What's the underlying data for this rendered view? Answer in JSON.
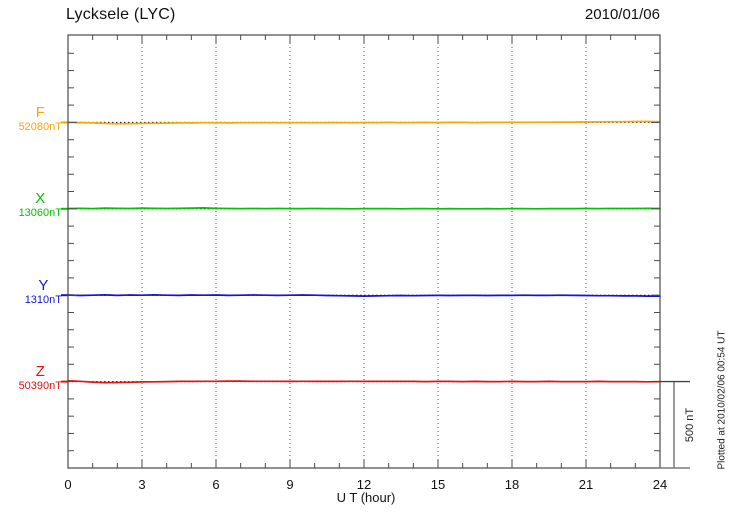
{
  "header": {
    "station_title": "Lycksele (LYC)",
    "date": "2010/01/06"
  },
  "chart_data": {
    "type": "line",
    "title": "Lycksele (LYC)",
    "date": "2010/01/06",
    "xlabel": "U T (hour)",
    "x_range_hours": [
      0,
      24
    ],
    "x_ticks": [
      0,
      3,
      6,
      9,
      12,
      15,
      18,
      21,
      24
    ],
    "x_minor_tick_hours": 1,
    "y_minor_tick_nT": 100,
    "grid": "vertical dotted lines every 3 hours, dotted horizontal baseline per component",
    "legend_position": "left margin, one label per trace baseline",
    "sample_step_hours": 0.5,
    "amplitude_scale": {
      "label": "500 nT",
      "nT": 500
    },
    "plotted_at": "Plotted at 2010/02/06 00:54 UT",
    "series": [
      {
        "name": "F",
        "baseline_value_label": "52080nT",
        "baseline_nT": 52080,
        "color": "#FFA500",
        "offsets_nT": [
          0,
          -1,
          -3,
          -6,
          -8,
          -7,
          -6,
          -5,
          -4,
          -3,
          -3,
          -2,
          -2,
          -3,
          -2,
          -2,
          -1,
          -2,
          -2,
          -1,
          -2,
          -1,
          -1,
          -2,
          -1,
          -1,
          0,
          -1,
          -1,
          0,
          -1,
          0,
          0,
          -1,
          0,
          0,
          1,
          0,
          1,
          1,
          2,
          2,
          3,
          3,
          4,
          4,
          5,
          5,
          4
        ]
      },
      {
        "name": "X",
        "baseline_value_label": "13060nT",
        "baseline_nT": 13060,
        "color": "#00C400",
        "offsets_nT": [
          2,
          3,
          1,
          4,
          3,
          2,
          4,
          3,
          2,
          3,
          4,
          5,
          3,
          2,
          1,
          2,
          1,
          2,
          1,
          1,
          2,
          1,
          1,
          0,
          1,
          1,
          1,
          0,
          1,
          1,
          0,
          1,
          0,
          0,
          1,
          0,
          1,
          1,
          0,
          1,
          1,
          1,
          2,
          1,
          2,
          2,
          2,
          3,
          2
        ]
      },
      {
        "name": "Y",
        "baseline_value_label": "1310nT",
        "baseline_nT": 1310,
        "color": "#1414D6",
        "offsets_nT": [
          1,
          -2,
          0,
          2,
          -1,
          1,
          0,
          2,
          0,
          -1,
          1,
          0,
          1,
          -1,
          0,
          1,
          0,
          -1,
          0,
          1,
          0,
          -2,
          -3,
          -4,
          -5,
          -4,
          -3,
          -2,
          -3,
          -2,
          -1,
          -2,
          -1,
          -1,
          -2,
          -1,
          -1,
          0,
          -1,
          -1,
          0,
          -1,
          -2,
          -3,
          -3,
          -4,
          -4,
          -5,
          -6
        ]
      },
      {
        "name": "Z",
        "baseline_value_label": "50390nT",
        "baseline_nT": 50390,
        "color": "#E21414",
        "offsets_nT": [
          4,
          2,
          -3,
          -6,
          -5,
          -4,
          -2,
          -1,
          0,
          1,
          1,
          2,
          2,
          3,
          3,
          2,
          2,
          2,
          1,
          2,
          1,
          1,
          1,
          2,
          1,
          1,
          1,
          1,
          1,
          0,
          1,
          1,
          0,
          1,
          0,
          0,
          1,
          0,
          0,
          1,
          0,
          0,
          0,
          1,
          0,
          0,
          0,
          -1,
          0
        ]
      }
    ],
    "colors": {
      "frame": "#4a4a4a",
      "grid": "#555555",
      "baseline_dots": "#000000",
      "scale_bar": "#7a7a7a",
      "text": "#111111"
    }
  }
}
